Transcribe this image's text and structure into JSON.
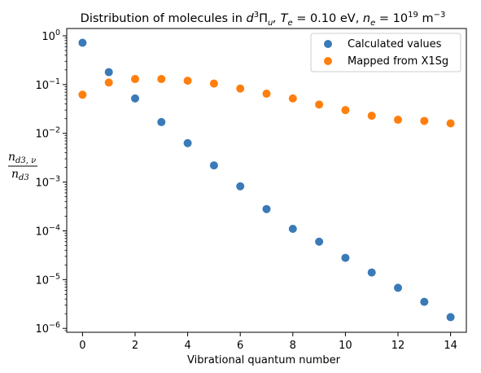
{
  "chart_data": {
    "type": "scatter",
    "title": {
      "prefix": "Distribution of molecules in ",
      "state_symbol": "d",
      "state_sup": "3",
      "state_term": "Π",
      "state_sub": "u",
      "te_text": ", T",
      "te_sub": "e",
      "te_value": " = 0.10 eV, ",
      "ne_text": "n",
      "ne_sub": "e",
      "ne_value": " = 10",
      "ne_exp": "19",
      "ne_unit": " m",
      "ne_unit_exp": "−3"
    },
    "xlabel": "Vibrational quantum number",
    "ylabel": {
      "numerator": "n",
      "numerator_sub": "d3, ν",
      "denominator": "n",
      "denominator_sub": "d3"
    },
    "xlim": [
      -0.6,
      14.6
    ],
    "ylim_log10": [
      -6.08,
      0.15
    ],
    "yscale": "log",
    "xticks": [
      0,
      2,
      4,
      6,
      8,
      10,
      12,
      14
    ],
    "yticks": [
      {
        "base": "10",
        "exp": "0",
        "value": 1
      },
      {
        "base": "10",
        "exp": "−1",
        "value": 0.1
      },
      {
        "base": "10",
        "exp": "−2",
        "value": 0.01
      },
      {
        "base": "10",
        "exp": "−3",
        "value": 0.001
      },
      {
        "base": "10",
        "exp": "−4",
        "value": 0.0001
      },
      {
        "base": "10",
        "exp": "−5",
        "value": 1e-05
      },
      {
        "base": "10",
        "exp": "−6",
        "value": 1e-06
      }
    ],
    "grid": false,
    "legend_position": "top-right",
    "series": [
      {
        "name": "Calculated values",
        "color": "#3a7ab8",
        "x": [
          0,
          1,
          2,
          3,
          4,
          5,
          6,
          7,
          8,
          9,
          10,
          11,
          12,
          13,
          14
        ],
        "y": [
          0.72,
          0.18,
          0.052,
          0.017,
          0.0063,
          0.0022,
          0.00082,
          0.00028,
          0.00011,
          6e-05,
          2.8e-05,
          1.4e-05,
          6.8e-06,
          3.5e-06,
          1.7e-06
        ]
      },
      {
        "name": "Mapped from X1Sg",
        "color": "#ff7f0e",
        "x": [
          0,
          1,
          2,
          3,
          4,
          5,
          6,
          7,
          8,
          9,
          10,
          11,
          12,
          13,
          14
        ],
        "y": [
          0.062,
          0.11,
          0.13,
          0.13,
          0.12,
          0.105,
          0.083,
          0.065,
          0.052,
          0.039,
          0.03,
          0.023,
          0.019,
          0.018,
          0.016
        ]
      }
    ]
  }
}
